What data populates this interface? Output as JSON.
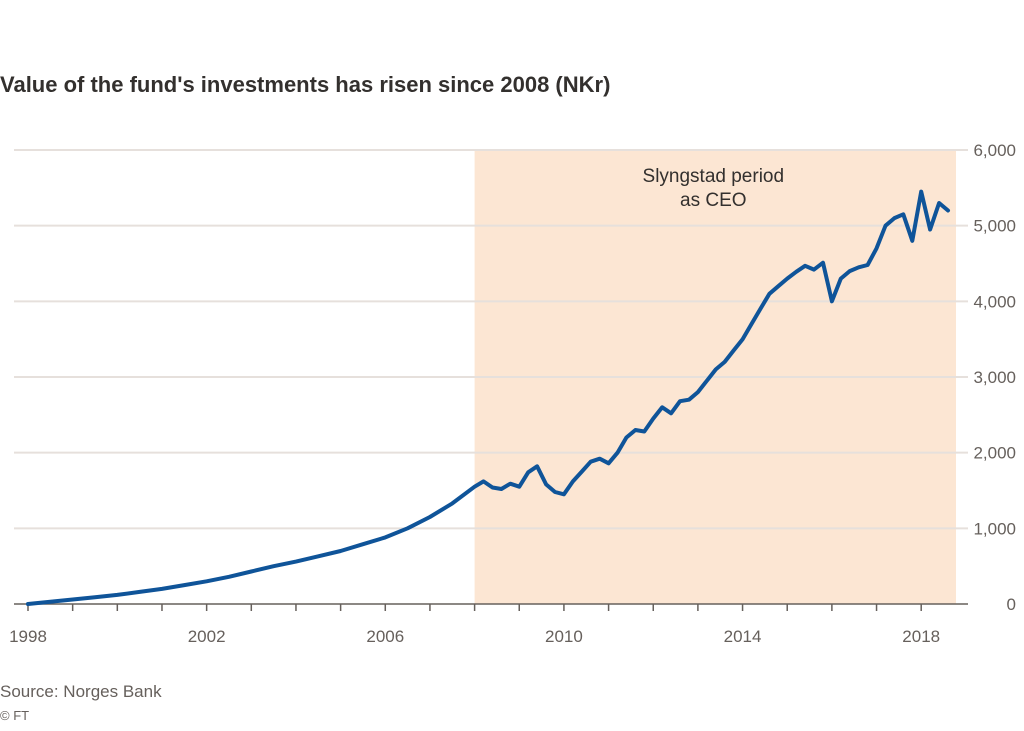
{
  "title": "Value of the fund's investments has risen since 2008 (NKr)",
  "source": "Source: Norges Bank",
  "credit": "© FT",
  "chart_data": {
    "type": "line",
    "title": "Value of the fund's investments has risen since 2008 (NKr)",
    "x_ticks": [
      "1998",
      "2002",
      "2006",
      "2010",
      "2014",
      "2018"
    ],
    "y_ticks": [
      "0",
      "1,000",
      "2,000",
      "3,000",
      "4,000",
      "5,000",
      "6,000"
    ],
    "ylim": [
      0,
      6000
    ],
    "xlim": [
      1998,
      2018.6
    ],
    "y_axis_side": "right",
    "grid": true,
    "shaded_period": {
      "start": 2008,
      "end": 2018.6,
      "label": [
        "Slyngstad period",
        "as CEO"
      ],
      "color": "#fce6d3"
    },
    "line_color": "#0f5499",
    "series": [
      {
        "x": [
          1998.0,
          1998.5,
          1999.0,
          1999.5,
          2000.0,
          2000.5,
          2001.0,
          2001.5,
          2002.0,
          2002.5,
          2003.0,
          2003.5,
          2004.0,
          2004.5,
          2005.0,
          2005.5,
          2006.0,
          2006.5,
          2007.0,
          2007.5,
          2008.0,
          2008.2,
          2008.4,
          2008.6,
          2008.8,
          2009.0,
          2009.2,
          2009.4,
          2009.6,
          2009.8,
          2010.0,
          2010.2,
          2010.4,
          2010.6,
          2010.8,
          2011.0,
          2011.2,
          2011.4,
          2011.6,
          2011.8,
          2012.0,
          2012.2,
          2012.4,
          2012.6,
          2012.8,
          2013.0,
          2013.2,
          2013.4,
          2013.6,
          2013.8,
          2014.0,
          2014.2,
          2014.4,
          2014.6,
          2014.8,
          2015.0,
          2015.2,
          2015.4,
          2015.6,
          2015.8,
          2016.0,
          2016.2,
          2016.4,
          2016.6,
          2016.8,
          2017.0,
          2017.2,
          2017.4,
          2017.6,
          2017.8,
          2018.0,
          2018.2,
          2018.4,
          2018.6
        ],
        "values": [
          0,
          30,
          60,
          90,
          120,
          160,
          200,
          250,
          300,
          360,
          430,
          500,
          560,
          630,
          700,
          790,
          880,
          1000,
          1150,
          1330,
          1550,
          1620,
          1540,
          1520,
          1590,
          1550,
          1740,
          1820,
          1580,
          1480,
          1450,
          1620,
          1750,
          1880,
          1920,
          1860,
          2000,
          2200,
          2300,
          2280,
          2450,
          2600,
          2520,
          2680,
          2700,
          2800,
          2950,
          3100,
          3200,
          3350,
          3500,
          3700,
          3900,
          4100,
          4200,
          4300,
          4390,
          4470,
          4420,
          4510,
          4000,
          4300,
          4400,
          4450,
          4480,
          4700,
          5000,
          5100,
          5150,
          4800,
          5450,
          4950,
          5300,
          5200
        ]
      }
    ]
  }
}
